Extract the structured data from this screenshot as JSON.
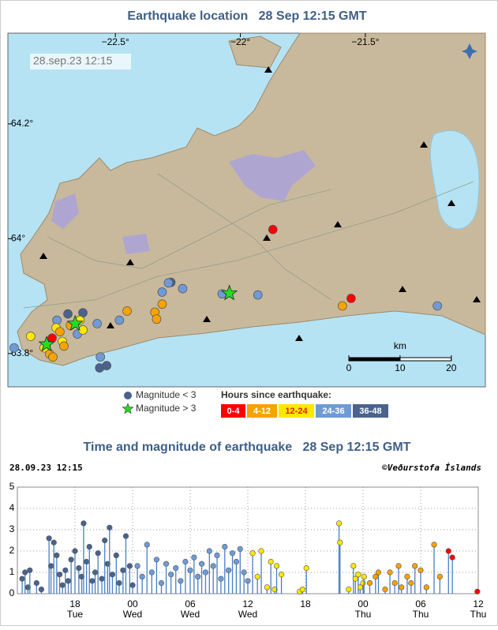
{
  "map": {
    "type": "map",
    "title": "Earthquake location   28 Sep 12:15 GMT",
    "timestamp": "28.sep.23 12:15",
    "xlim": [
      -22.93,
      -21.02
    ],
    "ylim": [
      63.742,
      64.358
    ],
    "xticks": [
      {
        "value": -22.5,
        "label": "−22.5°"
      },
      {
        "value": -22,
        "label": "−22°"
      },
      {
        "value": -21.5,
        "label": "−21.5°"
      }
    ],
    "yticks": [
      {
        "value": 64.2,
        "label": "64.2°"
      },
      {
        "value": 64,
        "label": "64°"
      },
      {
        "value": 63.8,
        "label": "63.8°"
      }
    ],
    "scale": {
      "label": "km",
      "ticks": [
        0,
        10,
        20
      ]
    },
    "legend": {
      "small": "Magnitude < 3",
      "large": "Magnitude > 3",
      "age_title": "Hours since earthquake:"
    },
    "series": [
      {
        "name": "0-4",
        "color": "#ff0000",
        "lon": [
          -21.87,
          -21.557,
          -22.753
        ],
        "lat": [
          64.016,
          63.896,
          63.827
        ]
      },
      {
        "name": "4-12",
        "color": "#f5a300",
        "lon": [
          -21.592,
          -22.313,
          -22.342,
          -22.335,
          -22.453,
          -22.763,
          -22.75,
          -22.722,
          -22.706,
          -22.68
        ],
        "lat": [
          63.883,
          63.886,
          63.872,
          63.86,
          63.874,
          63.799,
          63.794,
          63.838,
          63.813,
          63.849
        ]
      },
      {
        "name": "12-24",
        "color": "#ffe800",
        "lon": [
          -22.839,
          -22.642,
          -22.712,
          -22.785,
          -22.737,
          -22.63
        ],
        "lat": [
          63.83,
          63.858,
          63.821,
          63.81,
          63.845,
          63.841
        ]
      },
      {
        "name": "24-36",
        "color": "#6f9ad6",
        "lon": [
          -22.288,
          -22.231,
          -22.313,
          -21.93,
          -22.073,
          -21.212,
          -22.573,
          -22.484,
          -22.56,
          -22.652,
          -22.905,
          -22.734
        ],
        "lat": [
          63.923,
          63.913,
          63.907,
          63.902,
          63.904,
          63.883,
          63.852,
          63.858,
          63.794,
          63.834,
          63.81,
          63.858
        ]
      },
      {
        "name": "36-48",
        "color": "#4a628c",
        "lon": [
          -22.69,
          -22.563,
          -22.535,
          -22.278,
          -22.63
        ],
        "lat": [
          63.869,
          63.775,
          63.779,
          63.924,
          63.871
        ]
      }
    ],
    "large": {
      "color": "#22dd22",
      "lon": [
        -22.661,
        -22.775,
        -22.044
      ],
      "lat": [
        63.852,
        63.816,
        63.905
      ]
    }
  },
  "chart_data": {
    "type": "stem",
    "title": "Time and magnitude of earthquake   28 Sep 12:15 GMT",
    "timestamp": "28.09.23 12:15",
    "credit": "©Veðurstofa Íslands",
    "xlim": [
      12,
      60
    ],
    "ylim": [
      0,
      5
    ],
    "yticks": [
      0,
      1,
      2,
      3,
      4,
      5
    ],
    "grid": true,
    "stem_color": "#4a7fc0",
    "xticks": [
      {
        "value": 18,
        "label": "18"
      },
      {
        "value": 24,
        "label": "00"
      },
      {
        "value": 30,
        "label": "06"
      },
      {
        "value": 36,
        "label": "12"
      },
      {
        "value": 42,
        "label": "18"
      },
      {
        "value": 48,
        "label": "00"
      },
      {
        "value": 54,
        "label": "06"
      },
      {
        "value": 60,
        "label": "12"
      }
    ],
    "xtick_days": [
      "Tue",
      "Wed",
      "Wed",
      "Wed",
      null,
      "Thu",
      "Thu",
      "Thu"
    ],
    "series": [
      {
        "color": "#4a628c",
        "x": [
          12.5,
          12.8,
          13.1,
          13.3,
          14.0,
          14.5,
          15.3,
          15.5,
          15.8,
          16.1,
          16.4,
          16.7,
          17.0,
          17.3,
          17.6,
          18.0,
          18.4,
          18.7,
          18.9,
          19.2,
          19.5,
          19.8,
          20.1,
          20.4,
          20.8,
          21.1,
          21.4,
          21.6,
          21.9,
          22.3,
          22.6,
          23.0,
          23.3,
          23.7,
          24.0
        ],
        "values": [
          0.7,
          1.0,
          0.3,
          1.1,
          0.5,
          0.2,
          2.6,
          1.3,
          2.4,
          1.8,
          0.9,
          0.4,
          1.1,
          0.6,
          1.6,
          2.0,
          1.2,
          0.8,
          3.3,
          1.5,
          2.2,
          0.6,
          1.0,
          1.9,
          0.7,
          2.5,
          1.4,
          3.1,
          0.9,
          1.8,
          0.5,
          1.1,
          2.7,
          1.3,
          0.4
        ]
      },
      {
        "color": "#6f9ad6",
        "x": [
          24.5,
          25.0,
          25.5,
          26.0,
          26.5,
          27.0,
          27.5,
          28.0,
          28.5,
          29.0,
          29.5,
          30.0,
          30.4,
          30.8,
          31.2,
          31.6,
          32.0,
          32.4,
          32.8,
          33.2,
          33.6,
          34.0,
          34.4,
          34.8,
          35.2,
          35.6,
          36.0
        ],
        "values": [
          1.3,
          0.8,
          2.3,
          1.0,
          1.6,
          0.5,
          1.4,
          0.9,
          1.2,
          0.6,
          1.5,
          1.1,
          1.7,
          0.8,
          1.4,
          1.0,
          2.0,
          1.3,
          1.8,
          0.7,
          2.2,
          1.1,
          1.9,
          1.5,
          2.1,
          1.0,
          0.6
        ]
      },
      {
        "color": "#ffe800",
        "x": [
          36.5,
          37.0,
          37.4,
          38.0,
          38.4,
          38.8,
          39.0,
          39.5,
          41.4,
          41.7,
          42.1,
          45.5,
          45.6,
          46.5,
          47.0,
          47.2,
          47.5,
          47.7,
          48.0,
          48.1
        ],
        "values": [
          1.9,
          0.8,
          2.0,
          0.3,
          1.5,
          0.2,
          1.3,
          0.9,
          0.1,
          0.2,
          1.2,
          3.3,
          2.4,
          0.2,
          1.3,
          0.7,
          0.9,
          0.3,
          0.5,
          0.8
        ]
      },
      {
        "color": "#f5a300",
        "x": [
          48.7,
          49.3,
          49.6,
          50.3,
          50.8,
          51.3,
          51.7,
          52.0,
          52.6,
          53.0,
          53.4,
          54.0,
          54.6,
          55.4,
          56.0
        ],
        "values": [
          0.5,
          0.8,
          1.0,
          0.2,
          1.0,
          0.5,
          1.3,
          0.3,
          0.8,
          0.5,
          1.3,
          1.1,
          0.3,
          2.3,
          0.8
        ]
      },
      {
        "color": "#ff0000",
        "x": [
          56.9,
          57.3,
          59.9
        ],
        "values": [
          2.0,
          1.7,
          0.1
        ]
      }
    ]
  }
}
